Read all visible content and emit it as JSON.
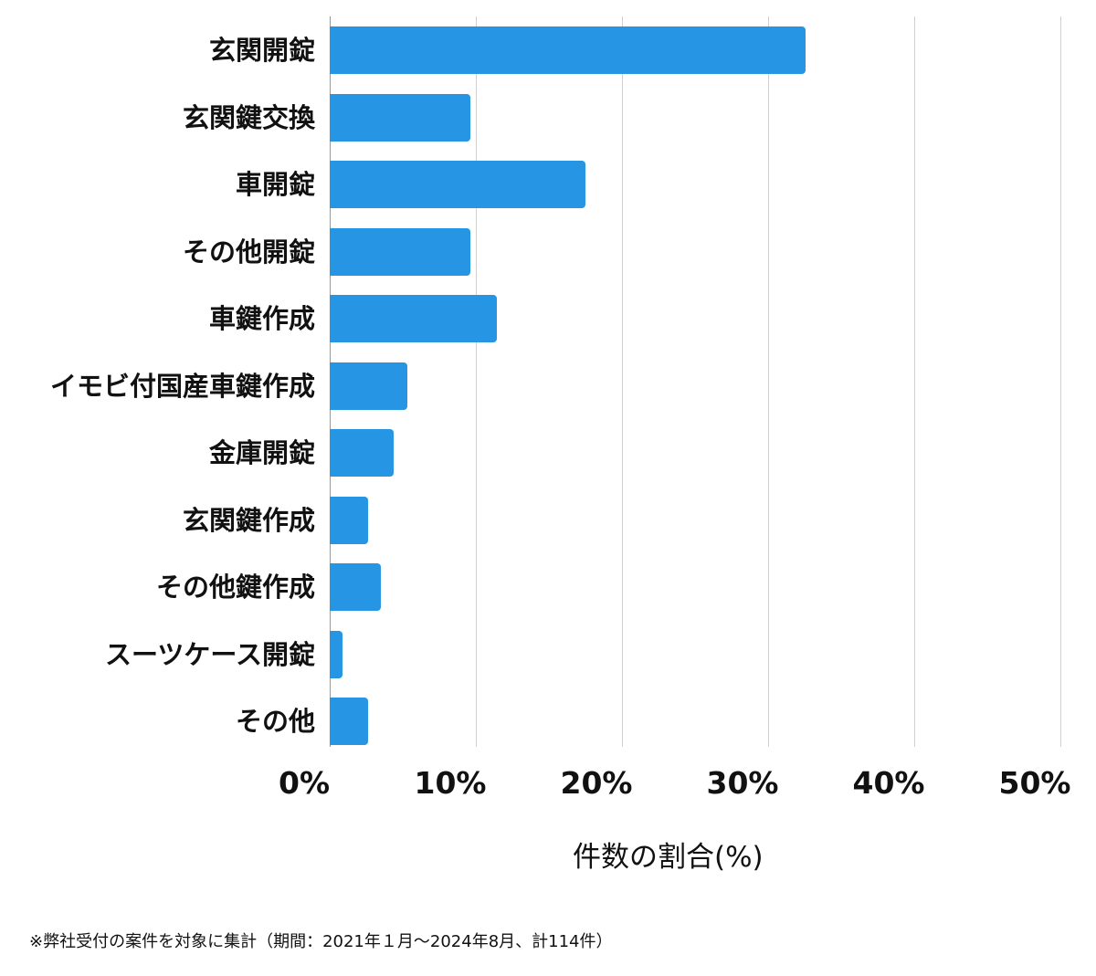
{
  "chart_data": {
    "type": "bar",
    "orientation": "horizontal",
    "categories": [
      "玄関開錠",
      "玄関鍵交換",
      "車開錠",
      "その他開錠",
      "車鍵作成",
      "イモビ付国産車鍵作成",
      "金庫開錠",
      "玄関鍵作成",
      "その他鍵作成",
      "スーツケース開錠",
      "その他"
    ],
    "values": [
      32.5,
      9.6,
      17.5,
      9.6,
      11.4,
      5.3,
      4.4,
      2.6,
      3.5,
      0.9,
      2.6
    ],
    "xlabel": "件数の割合(%)",
    "ylabel": "",
    "xlim": [
      0,
      50
    ],
    "xticks": [
      "0%",
      "10%",
      "20%",
      "30%",
      "40%",
      "50%"
    ],
    "grid": true,
    "bar_color": "#2595e4",
    "footnote": "※弊社受付の案件を対象に集計（期間：2021年１月～2024年8月、計114件）"
  }
}
